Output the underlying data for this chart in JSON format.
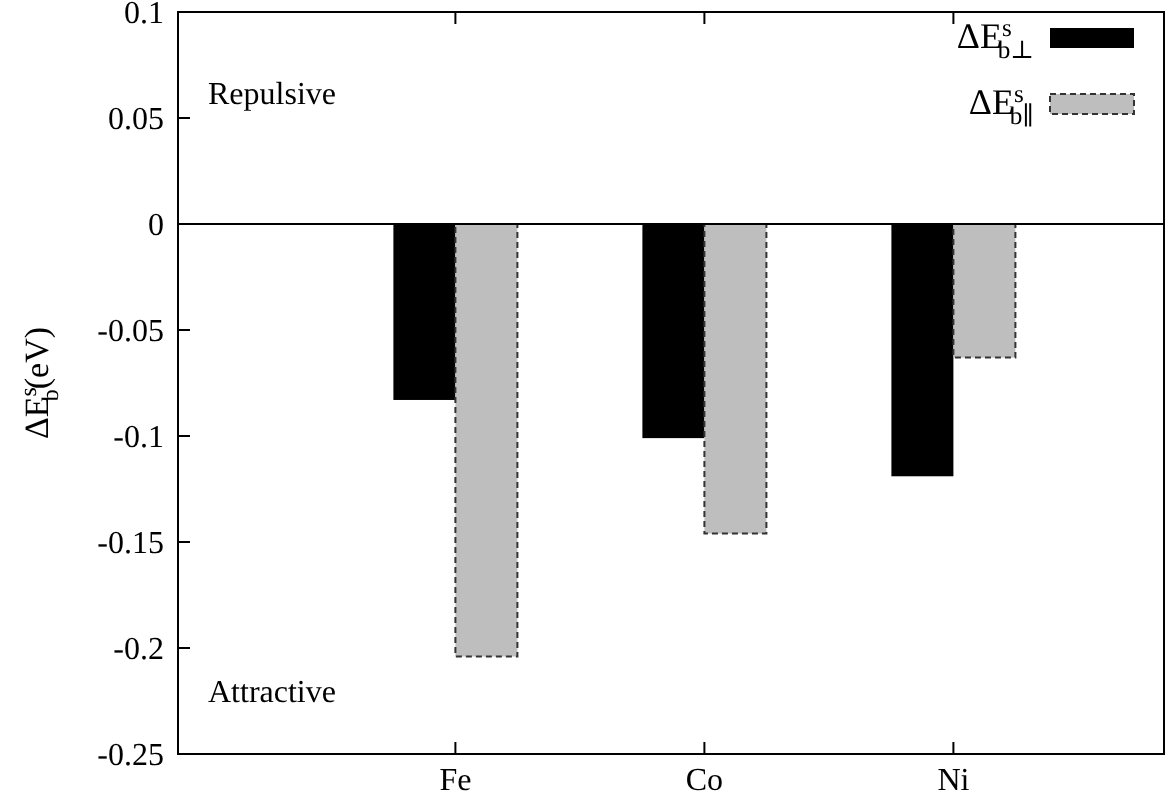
{
  "chart_data": {
    "type": "bar",
    "ylabel": "ΔE$^{s}$$_{b}$(eV)",
    "categories": [
      "Fe",
      "Co",
      "Ni"
    ],
    "series": [
      {
        "name": "ΔE$^{s}$$_{b⊥}$",
        "color": "#000000",
        "values": [
          -0.083,
          -0.101,
          -0.119
        ]
      },
      {
        "name": "ΔE$^{s}$$_{b∥}$",
        "color": "#bebebe",
        "line_style": "dashed",
        "values": [
          -0.204,
          -0.146,
          -0.063
        ]
      }
    ],
    "ylim": [
      -0.25,
      0.1
    ],
    "yticks": [
      -0.25,
      -0.2,
      -0.15,
      -0.1,
      -0.05,
      0,
      0.05,
      0.1
    ],
    "ref_lines": [
      {
        "axis": "y",
        "value": 0
      }
    ],
    "annotations": [
      "Repulsive",
      "Attractive"
    ],
    "legend": "top right",
    "grid": false
  }
}
